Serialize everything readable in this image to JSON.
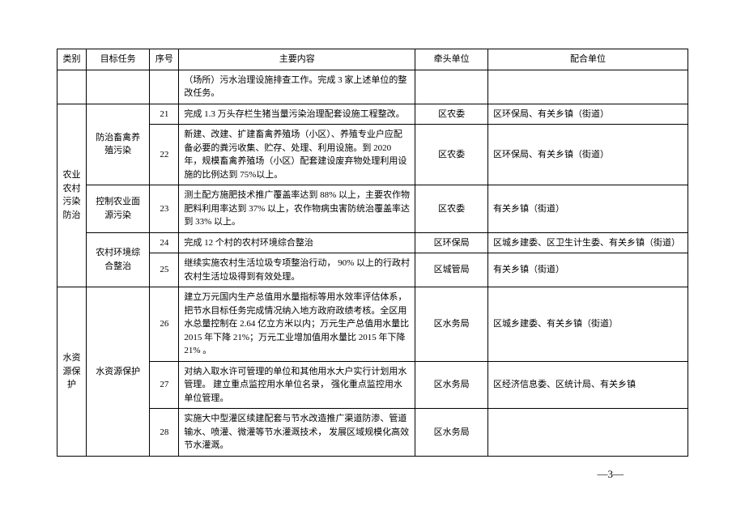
{
  "header": {
    "category": "类别",
    "task": "目标任务",
    "seq": "序号",
    "content": "主要内容",
    "lead": "牵头单位",
    "coop": "配合单位"
  },
  "rows": [
    {
      "content": "（场所）污水治理设施排查工作。完成 3 家上述单位的整改任务。"
    },
    {
      "seq": "21",
      "content": "完成 1.3 万头存栏生猪当量污染治理配套设施工程整改。",
      "lead": "区农委",
      "coop": "区环保局、有关乡镇（街道）"
    },
    {
      "seq": "22",
      "content": "新建、改建、扩建畜禽养殖场（小区）、养殖专业户应配备必要的粪污收集、贮存、处理、利用设施。到 2020 年，规模畜禽养殖场（小区）配套建设废弃物处理利用设施的比例达到 75%以上。",
      "lead": "区农委",
      "coop": "区环保局、有关乡镇（街道）"
    },
    {
      "seq": "23",
      "content": "测土配方施肥技术推广覆盖率达到  88% 以上，主要农作物肥料利用率达到 37% 以上，农作物病虫害防统治覆盖率达到 33% 以上。",
      "lead": "区农委",
      "coop": "有关乡镇（街道）"
    },
    {
      "seq": "24",
      "content": "完成 12 个村的农村环境综合整治",
      "lead": "区环保局",
      "coop": "区城乡建委、区卫生计生委、有关乡镇（街道）"
    },
    {
      "seq": "25",
      "content": "继续实施农村生活垃圾专项整治行动，  90% 以上的行政村农村生活垃圾得到有效处理。",
      "lead": "区城管局",
      "coop": "有关乡镇（街道）"
    },
    {
      "seq": "26",
      "content": "建立万元国内生产总值用水量指标等用水效率评估体系，把节水目标任务完成情况纳入地方政府政绩考核。全区用水总量控制在 2.64 亿立方米以内；万元生产总值用水量比 2015 年下降 21%；万元工业增加值用水量比 2015 年下降 21% 。",
      "lead": "区水务局",
      "coop": "区城乡建委、有关乡镇（街道）"
    },
    {
      "seq": "27",
      "content": "对纳入取水许可管理的单位和其他用水大户实行计划用水管理。 建立重点监控用水单位名录， 强化重点监控用水单位管理。",
      "lead": "区水务局",
      "coop": "区经济信息委、区统计局、有关乡镇"
    },
    {
      "seq": "28",
      "content": "实施大中型灌区续建配套与节水改造推广渠道防渗、管道输水、喷灌、微灌等节水灌溉技术， 发展区域规模化高效节水灌溉。",
      "lead": "区水务局",
      "coop": ""
    }
  ],
  "groups": {
    "cat1": "农业农村污染防治",
    "cat2": "水资源保护",
    "task1": "防治畜禽养殖污染",
    "task2": "控制农业面源污染",
    "task3": "农村环境综合整治",
    "task4": "水资源保护"
  },
  "pagenum": "—3—"
}
